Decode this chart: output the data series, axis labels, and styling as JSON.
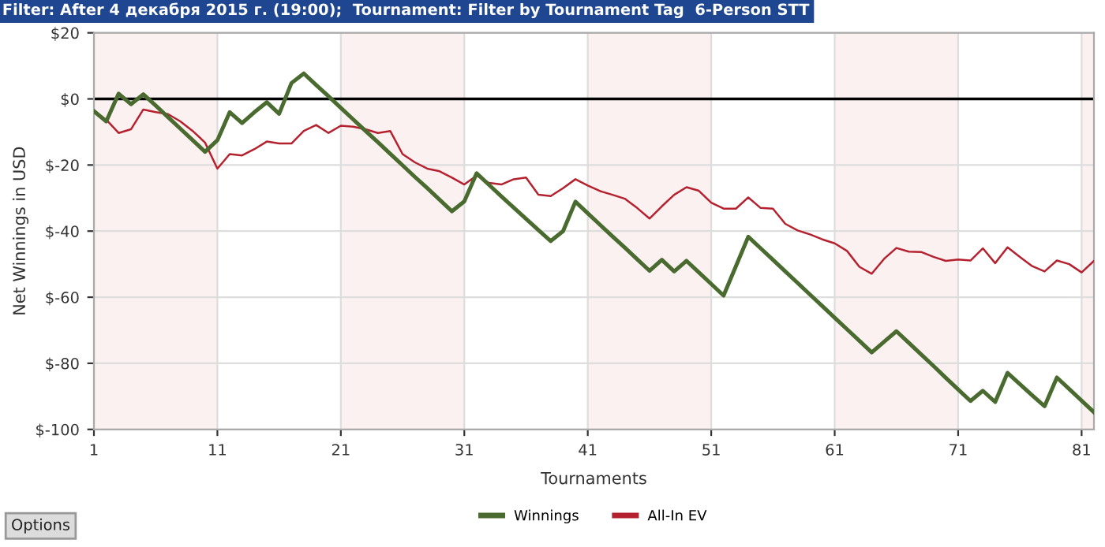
{
  "chart_data": {
    "type": "line",
    "title": "Filter: After 4 декабря 2015 г. (19:00);  Tournament: Filter by Tournament Tag  6-Person STT",
    "xlabel": "Tournaments",
    "ylabel": "Net Winnings in USD",
    "x": [
      1,
      2,
      3,
      4,
      5,
      6,
      7,
      8,
      9,
      10,
      11,
      12,
      13,
      14,
      15,
      16,
      17,
      18,
      19,
      20,
      21,
      22,
      23,
      24,
      25,
      26,
      27,
      28,
      29,
      30,
      31,
      32,
      33,
      34,
      35,
      36,
      37,
      38,
      39,
      40,
      41,
      42,
      43,
      44,
      45,
      46,
      47,
      48,
      49,
      50,
      51,
      52,
      53,
      54,
      55,
      56,
      57,
      58,
      59,
      60,
      61,
      62,
      63,
      64,
      65,
      66,
      67,
      68,
      69,
      70,
      71,
      72,
      73,
      74,
      75,
      76,
      77,
      78,
      79,
      80,
      81,
      82
    ],
    "series": [
      {
        "name": "Winnings",
        "color": "#4a6b2f",
        "values": [
          -3.7,
          -6.8,
          1.6,
          -1.6,
          1.4,
          -2,
          -5.5,
          -9,
          -12.5,
          -16,
          -12.5,
          -4,
          -7.3,
          -4,
          -1,
          -4.5,
          4.8,
          7.7,
          4.2,
          0.8,
          -2.7,
          -6.2,
          -9.7,
          -13.1,
          -16.6,
          -20.1,
          -23.6,
          -27,
          -30.5,
          -34,
          -31,
          -22.5,
          -26,
          -29.5,
          -32.9,
          -36.3,
          -39.7,
          -43,
          -40,
          -31.1,
          -34.6,
          -38.1,
          -41.6,
          -45,
          -48.5,
          -52,
          -48.7,
          -52.2,
          -49,
          -52.5,
          -56,
          -59.5,
          -50.6,
          -41.7,
          -45.2,
          -48.7,
          -52.2,
          -55.7,
          -59.2,
          -62.7,
          -66.2,
          -69.7,
          -73.2,
          -76.7,
          -73.5,
          -70.3,
          -73.8,
          -77.3,
          -80.8,
          -84.4,
          -87.9,
          -91.4,
          -88.3,
          -91.7,
          -82.9,
          -86.3,
          -89.7,
          -93,
          -84.3,
          -87.8,
          -91.3,
          -94.8
        ]
      },
      {
        "name": "All-In EV",
        "color": "#b5222f",
        "values": [
          -3.7,
          -6.3,
          -10.3,
          -9.2,
          -3.2,
          -4,
          -4.6,
          -6.8,
          -9.7,
          -13.2,
          -21.1,
          -16.7,
          -17.1,
          -15.2,
          -12.9,
          -13.5,
          -13.5,
          -9.7,
          -7.9,
          -10.3,
          -8.1,
          -8.4,
          -9.2,
          -10.3,
          -9.7,
          -16.7,
          -19.2,
          -21.1,
          -21.9,
          -23.8,
          -25.9,
          -23.2,
          -25.4,
          -25.9,
          -24.3,
          -23.8,
          -29,
          -29.4,
          -27,
          -24.3,
          -26.2,
          -27.9,
          -29,
          -30.2,
          -33,
          -36.2,
          -32.5,
          -29,
          -26.7,
          -27.8,
          -31.4,
          -33.2,
          -33.2,
          -29.8,
          -33,
          -33.2,
          -37.8,
          -39.8,
          -41,
          -42.5,
          -43.7,
          -46,
          -50.8,
          -52.9,
          -48.4,
          -45.1,
          -46.2,
          -46.3,
          -47.8,
          -49,
          -48.6,
          -48.9,
          -45.2,
          -49.7,
          -44.9,
          -47.8,
          -50.6,
          -52.2,
          -48.9,
          -50,
          -52.5,
          -49
        ]
      }
    ],
    "xlim": [
      1,
      82
    ],
    "ylim": [
      -100,
      20
    ],
    "xticks": [
      1,
      11,
      21,
      31,
      41,
      51,
      61,
      71,
      81
    ],
    "yticks": [
      {
        "value": 20,
        "label": "$20"
      },
      {
        "value": 0,
        "label": "$0"
      },
      {
        "value": -20,
        "label": "$-20"
      },
      {
        "value": -40,
        "label": "$-40"
      },
      {
        "value": -60,
        "label": "$-60"
      },
      {
        "value": -80,
        "label": "$-80"
      },
      {
        "value": -100,
        "label": "$-100"
      }
    ],
    "ref_lines": [
      {
        "axis": "y",
        "value": 0,
        "color": "#000000"
      }
    ],
    "bands": [
      {
        "axis": "x",
        "from": 1,
        "to": 11,
        "color": "#fcf1f1"
      },
      {
        "axis": "x",
        "from": 21,
        "to": 31,
        "color": "#fcf1f1"
      },
      {
        "axis": "x",
        "from": 41,
        "to": 51,
        "color": "#fcf1f1"
      },
      {
        "axis": "x",
        "from": 61,
        "to": 71,
        "color": "#fcf1f1"
      },
      {
        "axis": "x",
        "from": 81,
        "to": 82,
        "color": "#fcf1f1"
      }
    ],
    "grid": true,
    "legend": "bottom",
    "marker": "none",
    "line_style": "solid",
    "annotations": [
      "Options"
    ]
  }
}
